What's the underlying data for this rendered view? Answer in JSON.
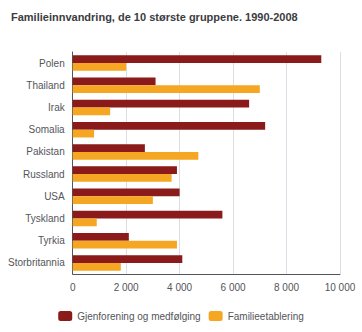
{
  "chart_data": {
    "type": "bar",
    "orientation": "horizontal",
    "title": "Familieinnvandring, de 10 største gruppene. 1990-2008",
    "categories": [
      "Polen",
      "Thailand",
      "Irak",
      "Somalia",
      "Pakistan",
      "Russland",
      "USA",
      "Tyskland",
      "Tyrkia",
      "Storbritannia"
    ],
    "series": [
      {
        "name": "Gjenforening og medfølging",
        "color": "#8B1A1A",
        "values": [
          9300,
          3100,
          6600,
          7200,
          2700,
          3900,
          4000,
          5600,
          2100,
          4100
        ]
      },
      {
        "name": "Familieetablering",
        "color": "#F5A623",
        "values": [
          2000,
          7000,
          1400,
          800,
          4700,
          3700,
          3000,
          900,
          3900,
          1800
        ]
      }
    ],
    "xlim": [
      0,
      10000
    ],
    "xticks": [
      0,
      {
        "value": 2000,
        "label": "2 000"
      },
      {
        "value": 4000,
        "label": "4 000"
      },
      {
        "value": 6000,
        "label": "6 000"
      },
      {
        "value": 8000,
        "label": "8 000"
      },
      {
        "value": 10000,
        "label": "10 000"
      }
    ],
    "grid": true,
    "legend": "bottom"
  }
}
